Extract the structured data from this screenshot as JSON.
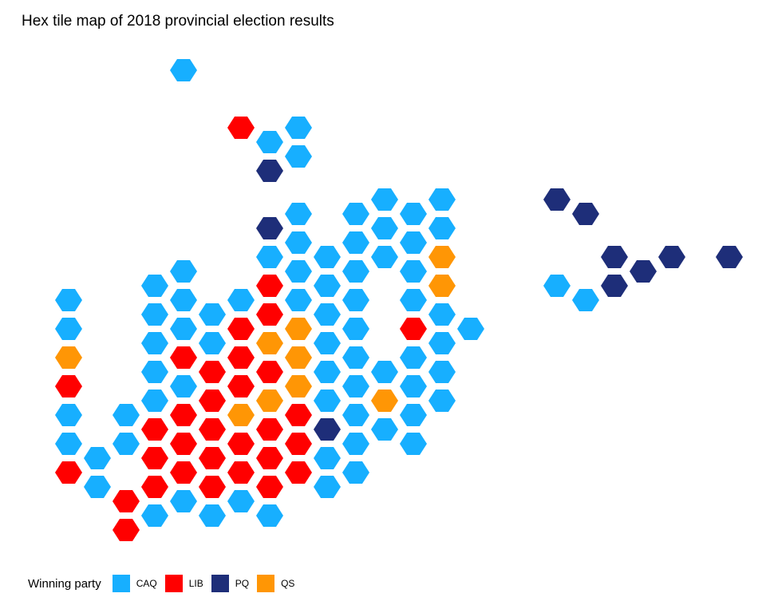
{
  "title": "Hex tile map of 2018 provincial election results",
  "legend": {
    "title": "Winning party",
    "items": [
      {
        "party": "CAQ",
        "label": "CAQ",
        "color": "#17AFFF"
      },
      {
        "party": "LIB",
        "label": "LIB",
        "color": "#FF0000"
      },
      {
        "party": "PQ",
        "label": "PQ",
        "color": "#1E2E79"
      },
      {
        "party": "QS",
        "label": "QS",
        "color": "#FF9605"
      }
    ]
  },
  "chart_data": {
    "type": "hex_tile_map",
    "grid": {
      "orientation": "flat-top",
      "odd_columns_shifted": "up"
    },
    "tiles": [
      {
        "col": 4,
        "row": 0,
        "party": "CAQ"
      },
      {
        "col": 6,
        "row": 2,
        "party": "LIB"
      },
      {
        "col": 7,
        "row": 3,
        "party": "CAQ"
      },
      {
        "col": 8,
        "row": 2,
        "party": "CAQ"
      },
      {
        "col": 7,
        "row": 4,
        "party": "PQ"
      },
      {
        "col": 8,
        "row": 3,
        "party": "CAQ"
      },
      {
        "col": 17,
        "row": 5,
        "party": "PQ"
      },
      {
        "col": 18,
        "row": 5,
        "party": "PQ"
      },
      {
        "col": 11,
        "row": 5,
        "party": "CAQ"
      },
      {
        "col": 12,
        "row": 5,
        "party": "CAQ"
      },
      {
        "col": 13,
        "row": 5,
        "party": "CAQ"
      },
      {
        "col": 11,
        "row": 6,
        "party": "CAQ"
      },
      {
        "col": 12,
        "row": 6,
        "party": "CAQ"
      },
      {
        "col": 13,
        "row": 6,
        "party": "CAQ"
      },
      {
        "col": 11,
        "row": 7,
        "party": "CAQ"
      },
      {
        "col": 12,
        "row": 7,
        "party": "CAQ"
      },
      {
        "col": 13,
        "row": 7,
        "party": "QS"
      },
      {
        "col": 12,
        "row": 8,
        "party": "CAQ"
      },
      {
        "col": 13,
        "row": 8,
        "party": "QS"
      },
      {
        "col": 12,
        "row": 9,
        "party": "LIB"
      },
      {
        "col": 13,
        "row": 9,
        "party": "CAQ"
      },
      {
        "col": 14,
        "row": 9,
        "party": "CAQ"
      },
      {
        "col": 19,
        "row": 7,
        "party": "PQ"
      },
      {
        "col": 20,
        "row": 7,
        "party": "PQ"
      },
      {
        "col": 21,
        "row": 7,
        "party": "PQ"
      },
      {
        "col": 23,
        "row": 7,
        "party": "PQ"
      },
      {
        "col": 17,
        "row": 8,
        "party": "CAQ"
      },
      {
        "col": 18,
        "row": 8,
        "party": "CAQ"
      },
      {
        "col": 19,
        "row": 8,
        "party": "PQ"
      },
      {
        "col": 0,
        "row": 8,
        "party": "CAQ"
      },
      {
        "col": 0,
        "row": 9,
        "party": "CAQ"
      },
      {
        "col": 0,
        "row": 10,
        "party": "QS"
      },
      {
        "col": 0,
        "row": 11,
        "party": "LIB"
      },
      {
        "col": 0,
        "row": 12,
        "party": "CAQ"
      },
      {
        "col": 0,
        "row": 13,
        "party": "CAQ"
      },
      {
        "col": 0,
        "row": 14,
        "party": "LIB"
      },
      {
        "col": 1,
        "row": 14,
        "party": "CAQ"
      },
      {
        "col": 1,
        "row": 15,
        "party": "CAQ"
      },
      {
        "col": 2,
        "row": 12,
        "party": "CAQ"
      },
      {
        "col": 2,
        "row": 13,
        "party": "CAQ"
      },
      {
        "col": 2,
        "row": 15,
        "party": "LIB"
      },
      {
        "col": 2,
        "row": 16,
        "party": "LIB"
      },
      {
        "col": 3,
        "row": 8,
        "party": "CAQ"
      },
      {
        "col": 3,
        "row": 9,
        "party": "CAQ"
      },
      {
        "col": 3,
        "row": 10,
        "party": "CAQ"
      },
      {
        "col": 3,
        "row": 11,
        "party": "CAQ"
      },
      {
        "col": 3,
        "row": 12,
        "party": "CAQ"
      },
      {
        "col": 3,
        "row": 13,
        "party": "LIB"
      },
      {
        "col": 3,
        "row": 14,
        "party": "LIB"
      },
      {
        "col": 3,
        "row": 15,
        "party": "LIB"
      },
      {
        "col": 3,
        "row": 16,
        "party": "CAQ"
      },
      {
        "col": 4,
        "row": 7,
        "party": "CAQ"
      },
      {
        "col": 4,
        "row": 8,
        "party": "CAQ"
      },
      {
        "col": 4,
        "row": 9,
        "party": "CAQ"
      },
      {
        "col": 4,
        "row": 10,
        "party": "LIB"
      },
      {
        "col": 4,
        "row": 11,
        "party": "CAQ"
      },
      {
        "col": 4,
        "row": 12,
        "party": "LIB"
      },
      {
        "col": 4,
        "row": 13,
        "party": "LIB"
      },
      {
        "col": 4,
        "row": 14,
        "party": "LIB"
      },
      {
        "col": 4,
        "row": 15,
        "party": "CAQ"
      },
      {
        "col": 5,
        "row": 9,
        "party": "CAQ"
      },
      {
        "col": 5,
        "row": 10,
        "party": "CAQ"
      },
      {
        "col": 5,
        "row": 11,
        "party": "LIB"
      },
      {
        "col": 5,
        "row": 12,
        "party": "LIB"
      },
      {
        "col": 5,
        "row": 13,
        "party": "LIB"
      },
      {
        "col": 5,
        "row": 14,
        "party": "LIB"
      },
      {
        "col": 5,
        "row": 15,
        "party": "LIB"
      },
      {
        "col": 5,
        "row": 16,
        "party": "CAQ"
      },
      {
        "col": 6,
        "row": 8,
        "party": "CAQ"
      },
      {
        "col": 6,
        "row": 9,
        "party": "LIB"
      },
      {
        "col": 6,
        "row": 10,
        "party": "LIB"
      },
      {
        "col": 6,
        "row": 11,
        "party": "LIB"
      },
      {
        "col": 6,
        "row": 12,
        "party": "QS"
      },
      {
        "col": 6,
        "row": 13,
        "party": "LIB"
      },
      {
        "col": 6,
        "row": 14,
        "party": "LIB"
      },
      {
        "col": 6,
        "row": 15,
        "party": "CAQ"
      },
      {
        "col": 7,
        "row": 6,
        "party": "PQ"
      },
      {
        "col": 7,
        "row": 7,
        "party": "CAQ"
      },
      {
        "col": 7,
        "row": 8,
        "party": "LIB"
      },
      {
        "col": 7,
        "row": 9,
        "party": "LIB"
      },
      {
        "col": 7,
        "row": 10,
        "party": "QS"
      },
      {
        "col": 7,
        "row": 11,
        "party": "LIB"
      },
      {
        "col": 7,
        "row": 12,
        "party": "QS"
      },
      {
        "col": 7,
        "row": 13,
        "party": "LIB"
      },
      {
        "col": 7,
        "row": 14,
        "party": "LIB"
      },
      {
        "col": 7,
        "row": 15,
        "party": "LIB"
      },
      {
        "col": 7,
        "row": 16,
        "party": "CAQ"
      },
      {
        "col": 8,
        "row": 5,
        "party": "CAQ"
      },
      {
        "col": 8,
        "row": 6,
        "party": "CAQ"
      },
      {
        "col": 8,
        "row": 7,
        "party": "CAQ"
      },
      {
        "col": 8,
        "row": 8,
        "party": "CAQ"
      },
      {
        "col": 8,
        "row": 9,
        "party": "QS"
      },
      {
        "col": 8,
        "row": 10,
        "party": "QS"
      },
      {
        "col": 8,
        "row": 11,
        "party": "QS"
      },
      {
        "col": 8,
        "row": 12,
        "party": "LIB"
      },
      {
        "col": 8,
        "row": 13,
        "party": "LIB"
      },
      {
        "col": 8,
        "row": 14,
        "party": "LIB"
      },
      {
        "col": 9,
        "row": 7,
        "party": "CAQ"
      },
      {
        "col": 9,
        "row": 8,
        "party": "CAQ"
      },
      {
        "col": 9,
        "row": 9,
        "party": "CAQ"
      },
      {
        "col": 9,
        "row": 10,
        "party": "CAQ"
      },
      {
        "col": 9,
        "row": 11,
        "party": "CAQ"
      },
      {
        "col": 9,
        "row": 12,
        "party": "CAQ"
      },
      {
        "col": 9,
        "row": 13,
        "party": "PQ"
      },
      {
        "col": 9,
        "row": 14,
        "party": "CAQ"
      },
      {
        "col": 9,
        "row": 15,
        "party": "CAQ"
      },
      {
        "col": 10,
        "row": 5,
        "party": "CAQ"
      },
      {
        "col": 10,
        "row": 6,
        "party": "CAQ"
      },
      {
        "col": 10,
        "row": 7,
        "party": "CAQ"
      },
      {
        "col": 10,
        "row": 8,
        "party": "CAQ"
      },
      {
        "col": 10,
        "row": 9,
        "party": "CAQ"
      },
      {
        "col": 10,
        "row": 10,
        "party": "CAQ"
      },
      {
        "col": 10,
        "row": 11,
        "party": "CAQ"
      },
      {
        "col": 10,
        "row": 12,
        "party": "CAQ"
      },
      {
        "col": 10,
        "row": 13,
        "party": "CAQ"
      },
      {
        "col": 10,
        "row": 14,
        "party": "CAQ"
      },
      {
        "col": 11,
        "row": 11,
        "party": "CAQ"
      },
      {
        "col": 11,
        "row": 12,
        "party": "QS"
      },
      {
        "col": 11,
        "row": 13,
        "party": "CAQ"
      },
      {
        "col": 12,
        "row": 10,
        "party": "CAQ"
      },
      {
        "col": 12,
        "row": 11,
        "party": "CAQ"
      },
      {
        "col": 12,
        "row": 12,
        "party": "CAQ"
      },
      {
        "col": 12,
        "row": 13,
        "party": "CAQ"
      },
      {
        "col": 13,
        "row": 10,
        "party": "CAQ"
      },
      {
        "col": 13,
        "row": 11,
        "party": "CAQ"
      },
      {
        "col": 13,
        "row": 12,
        "party": "CAQ"
      }
    ]
  }
}
